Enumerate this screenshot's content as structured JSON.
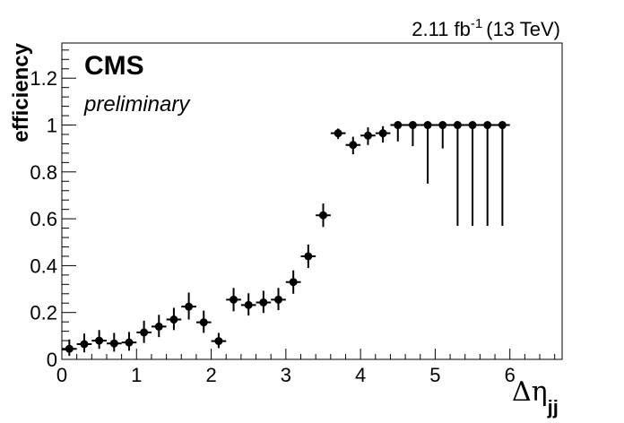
{
  "lumi_label": {
    "value": "2.11 fb",
    "exponent": "-1",
    "energy": "(13 TeV)"
  },
  "experiment": "CMS",
  "status": "preliminary",
  "chart_data": {
    "type": "scatter",
    "title": "",
    "ylabel": "efficiency",
    "xlabel_symbol": "Δη",
    "xlabel_subscript": "jj",
    "xlim": [
      0,
      6.7
    ],
    "ylim": [
      0,
      1.35
    ],
    "x_ticks": [
      0,
      1,
      2,
      3,
      4,
      5,
      6
    ],
    "y_ticks": [
      0,
      0.2,
      0.4,
      0.6,
      0.8,
      1,
      1.2
    ],
    "y_tick_labels": [
      "0",
      "0.2",
      "0.4",
      "0.6",
      "0.8",
      "1",
      "1.2"
    ],
    "grid": false,
    "bin_half_width": 0.1,
    "series": [
      {
        "marker": "filled-circle",
        "color": "#000000",
        "points": [
          {
            "x": 0.1,
            "y": 0.045,
            "yerr_low": 0.03,
            "yerr_high": 0.04
          },
          {
            "x": 0.3,
            "y": 0.065,
            "yerr_low": 0.035,
            "yerr_high": 0.045
          },
          {
            "x": 0.5,
            "y": 0.08,
            "yerr_low": 0.035,
            "yerr_high": 0.045
          },
          {
            "x": 0.7,
            "y": 0.068,
            "yerr_low": 0.035,
            "yerr_high": 0.045
          },
          {
            "x": 0.9,
            "y": 0.072,
            "yerr_low": 0.035,
            "yerr_high": 0.045
          },
          {
            "x": 1.1,
            "y": 0.115,
            "yerr_low": 0.045,
            "yerr_high": 0.05
          },
          {
            "x": 1.3,
            "y": 0.14,
            "yerr_low": 0.045,
            "yerr_high": 0.05
          },
          {
            "x": 1.5,
            "y": 0.17,
            "yerr_low": 0.045,
            "yerr_high": 0.05
          },
          {
            "x": 1.7,
            "y": 0.225,
            "yerr_low": 0.055,
            "yerr_high": 0.06
          },
          {
            "x": 1.9,
            "y": 0.158,
            "yerr_low": 0.045,
            "yerr_high": 0.05
          },
          {
            "x": 2.1,
            "y": 0.078,
            "yerr_low": 0.03,
            "yerr_high": 0.035
          },
          {
            "x": 2.3,
            "y": 0.255,
            "yerr_low": 0.05,
            "yerr_high": 0.05
          },
          {
            "x": 2.5,
            "y": 0.232,
            "yerr_low": 0.045,
            "yerr_high": 0.05
          },
          {
            "x": 2.7,
            "y": 0.243,
            "yerr_low": 0.045,
            "yerr_high": 0.05
          },
          {
            "x": 2.9,
            "y": 0.255,
            "yerr_low": 0.045,
            "yerr_high": 0.05
          },
          {
            "x": 3.1,
            "y": 0.33,
            "yerr_low": 0.05,
            "yerr_high": 0.05
          },
          {
            "x": 3.3,
            "y": 0.44,
            "yerr_low": 0.05,
            "yerr_high": 0.05
          },
          {
            "x": 3.5,
            "y": 0.615,
            "yerr_low": 0.05,
            "yerr_high": 0.05
          },
          {
            "x": 3.7,
            "y": 0.965,
            "yerr_low": 0.025,
            "yerr_high": 0.02
          },
          {
            "x": 3.9,
            "y": 0.915,
            "yerr_low": 0.04,
            "yerr_high": 0.035
          },
          {
            "x": 4.1,
            "y": 0.955,
            "yerr_low": 0.04,
            "yerr_high": 0.035
          },
          {
            "x": 4.3,
            "y": 0.965,
            "yerr_low": 0.04,
            "yerr_high": 0.03
          },
          {
            "x": 4.5,
            "y": 1.0,
            "yerr_low": 0.07,
            "yerr_high": 0.0
          },
          {
            "x": 4.7,
            "y": 1.0,
            "yerr_low": 0.09,
            "yerr_high": 0.0
          },
          {
            "x": 4.9,
            "y": 1.0,
            "yerr_low": 0.25,
            "yerr_high": 0.0
          },
          {
            "x": 5.1,
            "y": 1.0,
            "yerr_low": 0.1,
            "yerr_high": 0.0
          },
          {
            "x": 5.3,
            "y": 1.0,
            "yerr_low": 0.43,
            "yerr_high": 0.0
          },
          {
            "x": 5.5,
            "y": 1.0,
            "yerr_low": 0.43,
            "yerr_high": 0.0
          },
          {
            "x": 5.7,
            "y": 1.0,
            "yerr_low": 0.43,
            "yerr_high": 0.0
          },
          {
            "x": 5.9,
            "y": 1.0,
            "yerr_low": 0.43,
            "yerr_high": 0.0
          }
        ]
      }
    ]
  }
}
